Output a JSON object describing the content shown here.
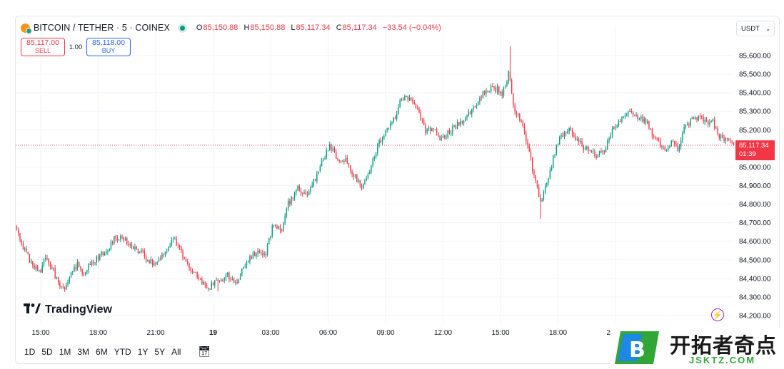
{
  "header": {
    "symbol": "BITCOIN / TETHER · 5 · COINEX",
    "o_label": "O",
    "o_value": "85,150.88",
    "h_label": "H",
    "h_value": "85,150.88",
    "l_label": "L",
    "l_value": "85,117.34",
    "c_label": "C",
    "c_value": "85,117.34",
    "change": "−33.54 (−0.04%)"
  },
  "trade": {
    "sell_price": "85,117.00",
    "sell_label": "SELL",
    "quantity": "1.00",
    "buy_price": "85,118.00",
    "buy_label": "BUY"
  },
  "currency": {
    "value": "USDT",
    "icon": "chevron-down-icon"
  },
  "last_price": {
    "value": "85,117.34",
    "countdown": "01:39"
  },
  "brand": {
    "name": "TradingView"
  },
  "ranges": [
    "1D",
    "5D",
    "1M",
    "3M",
    "6M",
    "YTD",
    "1Y",
    "5Y",
    "All"
  ],
  "watermark": {
    "cn": "开拓者奇点",
    "en": "JSKTZ.COM"
  },
  "colors": {
    "up": "#089981",
    "down": "#f23645",
    "accent": "#2962ff"
  },
  "chart_data": {
    "type": "candlestick",
    "title": "BITCOIN / TETHER · 5 · COINEX",
    "ylim": [
      84150,
      85700
    ],
    "y_ticks": [
      84200,
      84300,
      84400,
      84500,
      84600,
      84700,
      84800,
      84900,
      85000,
      85100,
      85200,
      85300,
      85400,
      85500,
      85600
    ],
    "y_tick_labels": [
      "84,200.00",
      "84,300.00",
      "84,400.00",
      "84,500.00",
      "84,600.00",
      "84,700.00",
      "84,800.00",
      "84,900.00",
      "85,000.00",
      "85,100.00",
      "85,200.00",
      "85,300.00",
      "85,400.00",
      "85,500.00",
      "85,600.00"
    ],
    "x_labels": [
      "15:00",
      "18:00",
      "21:00",
      "19",
      "03:00",
      "06:00",
      "09:00",
      "12:00",
      "15:00",
      "18:00",
      "21:00"
    ],
    "x_label_bold": [
      false,
      false,
      false,
      true,
      false,
      false,
      false,
      false,
      false,
      false,
      false
    ],
    "x_label_bar_index": [
      15,
      51,
      87,
      123,
      159,
      195,
      231,
      267,
      303,
      339,
      375
    ],
    "bar_count": 450,
    "last_price": 85117.34,
    "grid": true,
    "path_anchors": [
      [
        0,
        84670
      ],
      [
        4,
        84560
      ],
      [
        8,
        84500
      ],
      [
        14,
        84430
      ],
      [
        18,
        84500
      ],
      [
        22,
        84460
      ],
      [
        26,
        84370
      ],
      [
        30,
        84330
      ],
      [
        34,
        84430
      ],
      [
        38,
        84470
      ],
      [
        42,
        84430
      ],
      [
        46,
        84480
      ],
      [
        50,
        84510
      ],
      [
        56,
        84550
      ],
      [
        62,
        84630
      ],
      [
        68,
        84600
      ],
      [
        74,
        84570
      ],
      [
        80,
        84520
      ],
      [
        86,
        84480
      ],
      [
        92,
        84520
      ],
      [
        98,
        84620
      ],
      [
        104,
        84520
      ],
      [
        108,
        84460
      ],
      [
        114,
        84400
      ],
      [
        120,
        84350
      ],
      [
        126,
        84390
      ],
      [
        132,
        84420
      ],
      [
        138,
        84380
      ],
      [
        144,
        84490
      ],
      [
        150,
        84540
      ],
      [
        156,
        84530
      ],
      [
        160,
        84680
      ],
      [
        166,
        84660
      ],
      [
        170,
        84800
      ],
      [
        176,
        84880
      ],
      [
        182,
        84860
      ],
      [
        188,
        84950
      ],
      [
        192,
        85040
      ],
      [
        196,
        85120
      ],
      [
        200,
        85050
      ],
      [
        206,
        85030
      ],
      [
        212,
        84950
      ],
      [
        216,
        84890
      ],
      [
        220,
        84950
      ],
      [
        226,
        85110
      ],
      [
        232,
        85210
      ],
      [
        236,
        85250
      ],
      [
        240,
        85350
      ],
      [
        246,
        85380
      ],
      [
        250,
        85320
      ],
      [
        256,
        85200
      ],
      [
        260,
        85210
      ],
      [
        266,
        85150
      ],
      [
        272,
        85200
      ],
      [
        280,
        85250
      ],
      [
        286,
        85310
      ],
      [
        292,
        85400
      ],
      [
        298,
        85430
      ],
      [
        304,
        85400
      ],
      [
        308,
        85500
      ],
      [
        312,
        85300
      ],
      [
        316,
        85240
      ],
      [
        320,
        85120
      ],
      [
        324,
        84950
      ],
      [
        328,
        84820
      ],
      [
        332,
        84900
      ],
      [
        336,
        85050
      ],
      [
        340,
        85150
      ],
      [
        346,
        85210
      ],
      [
        350,
        85150
      ],
      [
        356,
        85100
      ],
      [
        362,
        85060
      ],
      [
        368,
        85080
      ],
      [
        372,
        85180
      ],
      [
        378,
        85250
      ],
      [
        384,
        85310
      ],
      [
        388,
        85270
      ],
      [
        394,
        85250
      ],
      [
        398,
        85180
      ],
      [
        402,
        85130
      ],
      [
        406,
        85090
      ],
      [
        410,
        85140
      ],
      [
        414,
        85100
      ],
      [
        418,
        85200
      ],
      [
        422,
        85250
      ],
      [
        426,
        85270
      ],
      [
        432,
        85250
      ],
      [
        436,
        85240
      ],
      [
        440,
        85160
      ],
      [
        446,
        85140
      ],
      [
        449,
        85117.34
      ]
    ]
  }
}
